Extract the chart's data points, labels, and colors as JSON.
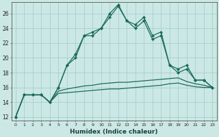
{
  "xlabel": "Humidex (Indice chaleur)",
  "background_color": "#cce8e4",
  "grid_color": "#99cccc",
  "line_color": "#1a6b5a",
  "xlim": [
    -0.5,
    23.5
  ],
  "ylim": [
    11.5,
    27.5
  ],
  "yticks": [
    12,
    14,
    16,
    18,
    20,
    22,
    24,
    26
  ],
  "xticks": [
    0,
    1,
    2,
    3,
    4,
    5,
    6,
    7,
    8,
    9,
    10,
    11,
    12,
    13,
    14,
    15,
    16,
    17,
    18,
    19,
    20,
    21,
    22,
    23
  ],
  "line1_x": [
    0,
    1,
    2,
    3,
    4,
    5,
    6,
    7,
    8,
    9,
    10,
    11,
    12,
    13,
    14,
    15,
    16,
    17,
    18,
    19,
    20,
    21,
    22,
    23
  ],
  "line1_y": [
    12,
    15,
    15,
    15,
    14,
    16,
    19,
    20,
    23,
    23,
    24,
    25.5,
    27,
    25,
    24.5,
    25.5,
    23,
    23.5,
    19,
    18.5,
    19,
    17,
    17,
    16
  ],
  "line2_x": [
    0,
    1,
    2,
    3,
    4,
    5,
    6,
    7,
    8,
    9,
    10,
    11,
    12,
    13,
    14,
    15,
    16,
    17,
    18,
    19,
    20,
    21,
    22,
    23
  ],
  "line2_y": [
    12,
    15,
    15,
    15,
    14,
    16,
    19,
    20.5,
    23,
    23.5,
    24,
    26,
    27.2,
    25,
    24,
    25,
    22.5,
    23,
    19,
    18,
    18.5,
    17,
    17,
    16
  ],
  "line3_x": [
    0,
    1,
    2,
    3,
    4,
    5,
    6,
    7,
    8,
    9,
    10,
    11,
    12,
    13,
    14,
    15,
    16,
    17,
    18,
    19,
    20,
    21,
    22,
    23
  ],
  "line3_y": [
    12,
    15,
    15,
    15,
    14,
    15.5,
    15.8,
    16,
    16.2,
    16.3,
    16.5,
    16.6,
    16.7,
    16.7,
    16.8,
    16.9,
    17.0,
    17.1,
    17.2,
    17.3,
    16.8,
    16.5,
    16.3,
    16
  ],
  "line4_x": [
    0,
    1,
    2,
    3,
    4,
    5,
    6,
    7,
    8,
    9,
    10,
    11,
    12,
    13,
    14,
    15,
    16,
    17,
    18,
    19,
    20,
    21,
    22,
    23
  ],
  "line4_y": [
    12,
    15,
    15,
    15,
    14,
    15.2,
    15.3,
    15.4,
    15.5,
    15.6,
    15.7,
    15.8,
    15.8,
    15.9,
    16.0,
    16.1,
    16.2,
    16.3,
    16.5,
    16.6,
    16.3,
    16.1,
    16.0,
    16
  ],
  "marker_style": "D",
  "marker_size": 2.2,
  "linewidth": 0.9
}
